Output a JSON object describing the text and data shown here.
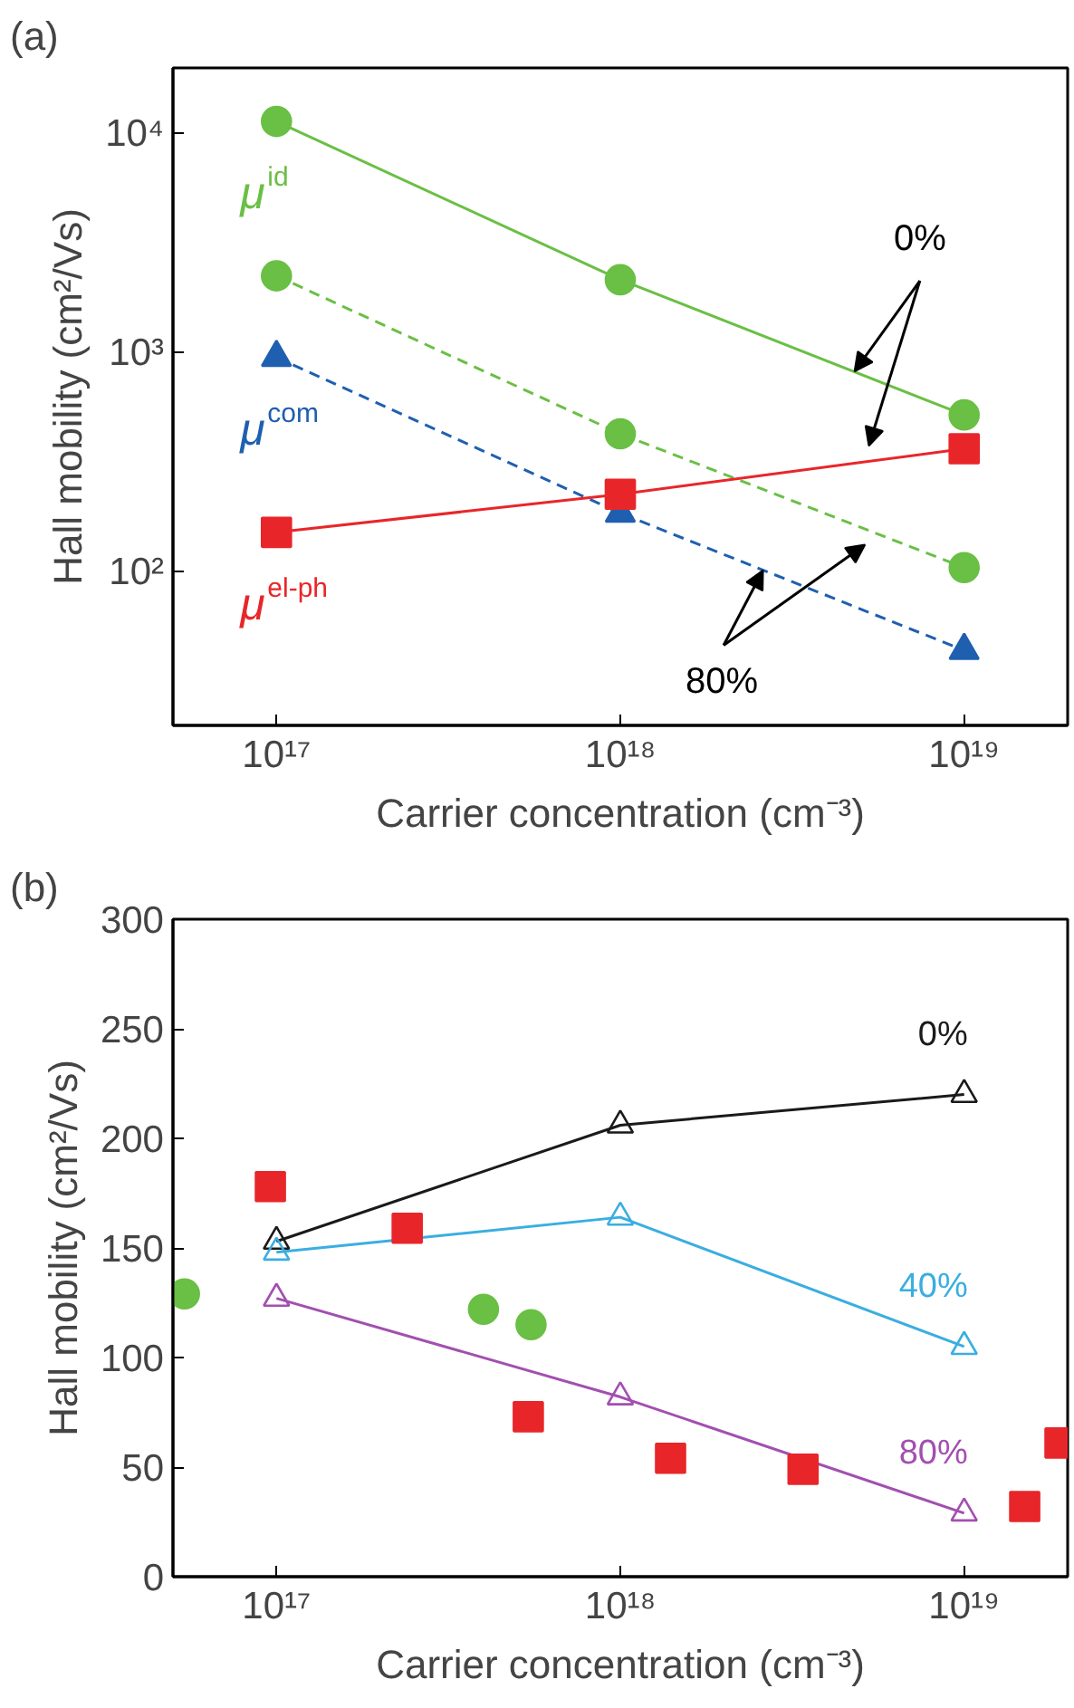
{
  "chart_data": [
    {
      "type": "line",
      "title": "(a)",
      "xlabel": "Carrier concentration (cm⁻³)",
      "ylabel": "Hall mobility (cm²/Vs)",
      "log": "xy",
      "grid": false,
      "x": [
        1e+17,
        1e+18,
        1e+19
      ],
      "xlim": [
        5e+16,
        2e+19
      ],
      "xticks": [
        {
          "value": 1e+17,
          "label": "10¹⁷"
        },
        {
          "value": 1e+18,
          "label": "10¹⁸"
        },
        {
          "value": 1e+19,
          "label": "10¹⁹"
        }
      ],
      "ylim": [
        20,
        20000
      ],
      "yticks": [
        {
          "value": 100,
          "label": "10²"
        },
        {
          "value": 1000,
          "label": "10³"
        },
        {
          "value": 10000,
          "label": "10⁴"
        }
      ],
      "series": [
        {
          "name": "μ$^{id}$",
          "color": "#6abf45",
          "marker": "circle",
          "line_style": "solid",
          "values": [
            11400,
            2160,
            522
          ]
        },
        {
          "color": "#6abf45",
          "marker": "circle",
          "line_style": "dashed",
          "values": [
            2250,
            428,
            105
          ]
        },
        {
          "name": "μ$^{com}$",
          "color": "#1f5fb0",
          "marker": "triangle",
          "line_style": "dashed",
          "values": [
            955,
            186,
            44
          ]
        },
        {
          "name": "μ$^{el-ph}$",
          "color": "#e8262a",
          "marker": "square",
          "line_style": "solid",
          "values": [
            152,
            227,
            366
          ]
        }
      ],
      "annotations": [
        {
          "text": "0%",
          "x": 4.8e+18,
          "y": 824
        },
        {
          "text": "80%",
          "x": 2.6e+18,
          "y": 102
        }
      ]
    },
    {
      "type": "line",
      "title": "(b)",
      "xlabel": "Carrier concentration (cm⁻³)",
      "ylabel": "Hall mobility (cm²/Vs)",
      "log": "x",
      "grid": false,
      "x": [
        1e+17,
        1e+18,
        1e+19
      ],
      "xlim": [
        5e+16,
        2e+19
      ],
      "xticks": [
        {
          "value": 1e+17,
          "label": "10¹⁷"
        },
        {
          "value": 1e+18,
          "label": "10¹⁸"
        },
        {
          "value": 1e+19,
          "label": "10¹⁹"
        }
      ],
      "ylim": [
        0,
        300
      ],
      "yticks": [
        0,
        50,
        100,
        150,
        200,
        250,
        300
      ],
      "series": [
        {
          "name": "0%",
          "color": "#1a1a1a",
          "marker": "triangle_open",
          "line_style": "solid",
          "values": [
            153,
            206,
            220
          ]
        },
        {
          "name": "40%",
          "color": "#3aaee0",
          "marker": "triangle_open",
          "line_style": "solid",
          "values": [
            148,
            164,
            105
          ]
        },
        {
          "name": "80%",
          "color": "#a24fb0",
          "marker": "triangle_open",
          "line_style": "solid",
          "values": [
            127,
            82,
            29
          ]
        },
        {
          "type": "scatter",
          "color": "#e8262a",
          "marker": "square",
          "x": [
            9.6e+16,
            2.4e+17,
            5.4e+17,
            1.4e+18,
            3.4e+18,
            1.5e+19,
            1.9e+19
          ],
          "values": [
            178,
            159,
            73,
            54,
            49,
            32,
            61
          ]
        },
        {
          "type": "scatter",
          "color": "#6abf45",
          "marker": "circle",
          "x": [
            5.4e+16,
            4e+17,
            5.5e+17
          ],
          "values": [
            129,
            122,
            115
          ]
        }
      ]
    }
  ]
}
